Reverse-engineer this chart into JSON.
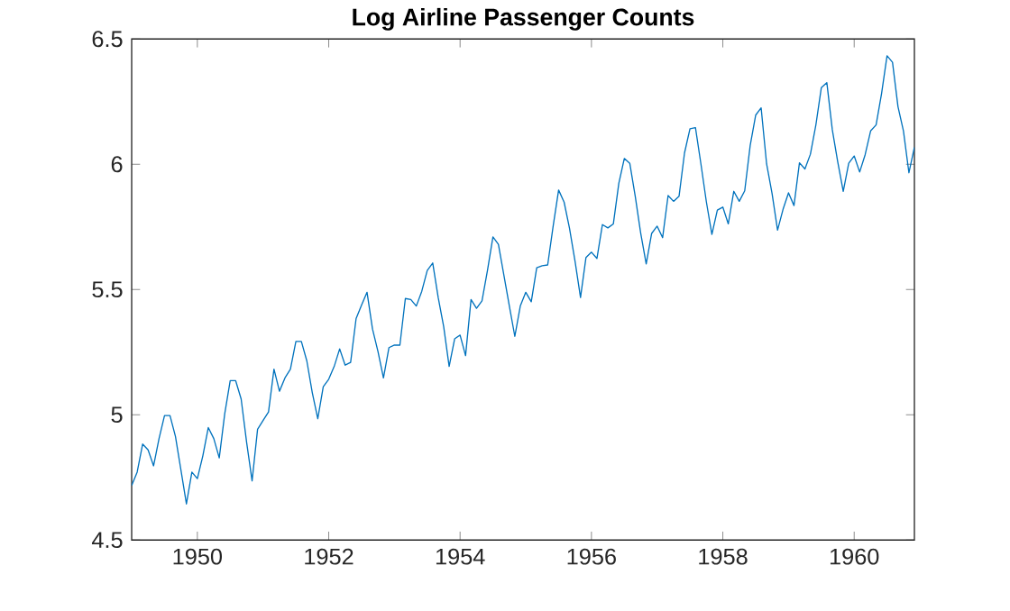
{
  "chart_data": {
    "type": "line",
    "title": "Log Airline Passenger Counts",
    "x": [
      "1949-01",
      "1949-02",
      "1949-03",
      "1949-04",
      "1949-05",
      "1949-06",
      "1949-07",
      "1949-08",
      "1949-09",
      "1949-10",
      "1949-11",
      "1949-12",
      "1950-01",
      "1950-02",
      "1950-03",
      "1950-04",
      "1950-05",
      "1950-06",
      "1950-07",
      "1950-08",
      "1950-09",
      "1950-10",
      "1950-11",
      "1950-12",
      "1951-01",
      "1951-02",
      "1951-03",
      "1951-04",
      "1951-05",
      "1951-06",
      "1951-07",
      "1951-08",
      "1951-09",
      "1951-10",
      "1951-11",
      "1951-12",
      "1952-01",
      "1952-02",
      "1952-03",
      "1952-04",
      "1952-05",
      "1952-06",
      "1952-07",
      "1952-08",
      "1952-09",
      "1952-10",
      "1952-11",
      "1952-12",
      "1953-01",
      "1953-02",
      "1953-03",
      "1953-04",
      "1953-05",
      "1953-06",
      "1953-07",
      "1953-08",
      "1953-09",
      "1953-10",
      "1953-11",
      "1953-12",
      "1954-01",
      "1954-02",
      "1954-03",
      "1954-04",
      "1954-05",
      "1954-06",
      "1954-07",
      "1954-08",
      "1954-09",
      "1954-10",
      "1954-11",
      "1954-12",
      "1955-01",
      "1955-02",
      "1955-03",
      "1955-04",
      "1955-05",
      "1955-06",
      "1955-07",
      "1955-08",
      "1955-09",
      "1955-10",
      "1955-11",
      "1955-12",
      "1956-01",
      "1956-02",
      "1956-03",
      "1956-04",
      "1956-05",
      "1956-06",
      "1956-07",
      "1956-08",
      "1956-09",
      "1956-10",
      "1956-11",
      "1956-12",
      "1957-01",
      "1957-02",
      "1957-03",
      "1957-04",
      "1957-05",
      "1957-06",
      "1957-07",
      "1957-08",
      "1957-09",
      "1957-10",
      "1957-11",
      "1957-12",
      "1958-01",
      "1958-02",
      "1958-03",
      "1958-04",
      "1958-05",
      "1958-06",
      "1958-07",
      "1958-08",
      "1958-09",
      "1958-10",
      "1958-11",
      "1958-12",
      "1959-01",
      "1959-02",
      "1959-03",
      "1959-04",
      "1959-05",
      "1959-06",
      "1959-07",
      "1959-08",
      "1959-09",
      "1959-10",
      "1959-11",
      "1959-12",
      "1960-01",
      "1960-02",
      "1960-03",
      "1960-04",
      "1960-05",
      "1960-06",
      "1960-07",
      "1960-08",
      "1960-09",
      "1960-10",
      "1960-11",
      "1960-12"
    ],
    "series": [
      {
        "color": "#0072bd",
        "values": [
          4.718,
          4.771,
          4.883,
          4.86,
          4.796,
          4.905,
          4.997,
          4.997,
          4.913,
          4.779,
          4.644,
          4.771,
          4.745,
          4.836,
          4.949,
          4.905,
          4.828,
          5.004,
          5.136,
          5.136,
          5.063,
          4.89,
          4.736,
          4.942,
          4.977,
          5.011,
          5.182,
          5.094,
          5.147,
          5.182,
          5.293,
          5.293,
          5.215,
          5.088,
          4.984,
          5.112,
          5.142,
          5.193,
          5.263,
          5.198,
          5.209,
          5.384,
          5.438,
          5.489,
          5.342,
          5.252,
          5.147,
          5.268,
          5.278,
          5.278,
          5.464,
          5.46,
          5.434,
          5.493,
          5.576,
          5.606,
          5.468,
          5.352,
          5.193,
          5.303,
          5.318,
          5.236,
          5.46,
          5.425,
          5.455,
          5.576,
          5.71,
          5.68,
          5.557,
          5.434,
          5.313,
          5.434,
          5.489,
          5.451,
          5.587,
          5.595,
          5.598,
          5.753,
          5.897,
          5.849,
          5.743,
          5.613,
          5.468,
          5.628,
          5.649,
          5.624,
          5.759,
          5.746,
          5.762,
          5.924,
          6.023,
          6.004,
          5.872,
          5.724,
          5.602,
          5.724,
          5.753,
          5.707,
          5.875,
          5.852,
          5.872,
          6.045,
          6.142,
          6.146,
          6.001,
          5.849,
          5.72,
          5.817,
          5.829,
          5.762,
          5.892,
          5.852,
          5.894,
          6.075,
          6.196,
          6.225,
          6.001,
          5.883,
          5.737,
          5.82,
          5.886,
          5.835,
          6.006,
          5.981,
          6.04,
          6.157,
          6.306,
          6.326,
          6.138,
          6.009,
          5.892,
          6.004,
          6.033,
          5.969,
          6.038,
          6.133,
          6.157,
          6.282,
          6.433,
          6.407,
          6.23,
          6.133,
          5.966,
          6.068
        ]
      }
    ],
    "xlim": [
      "1949-01",
      "1960-12"
    ],
    "xticks": [
      "1950",
      "1952",
      "1954",
      "1956",
      "1958",
      "1960"
    ],
    "ylim": [
      4.5,
      6.5
    ],
    "yticks": [
      4.5,
      5,
      5.5,
      6,
      6.5
    ],
    "grid": false,
    "marker": "none",
    "line_style": "solid"
  }
}
